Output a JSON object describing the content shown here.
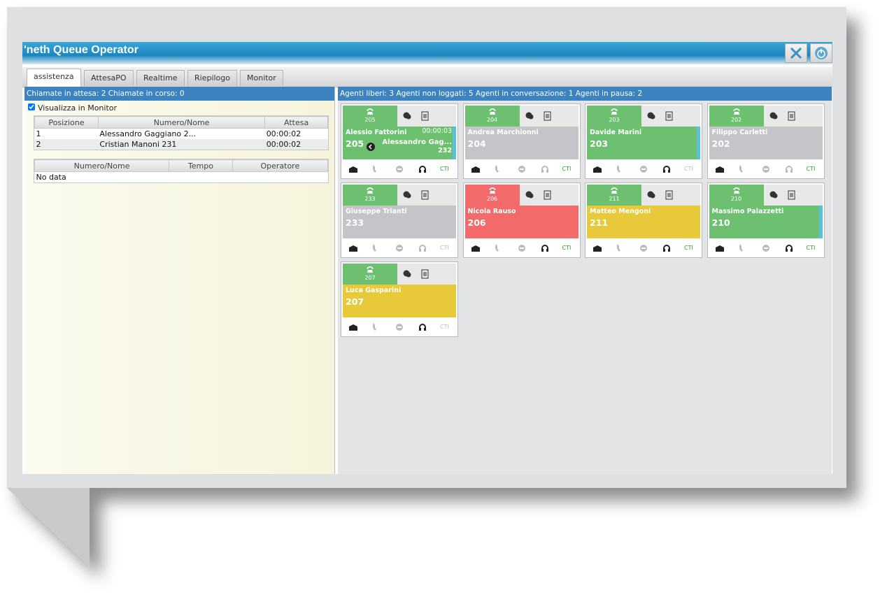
{
  "app": {
    "title": "'neth Queue Operator"
  },
  "tabs": [
    "assistenza",
    "AttesaPO",
    "Realtime",
    "Riepilogo",
    "Monitor"
  ],
  "left": {
    "status": "Chiamate in attesa: 2 Chiamate in corso: 0",
    "checkbox": "Visualizza in Monitor",
    "waiting_table": {
      "headers": [
        "Posizione",
        "Numero/Nome",
        "Attesa"
      ],
      "rows": [
        [
          "1",
          "Alessandro Gaggiano 2...",
          "00:00:02"
        ],
        [
          "2",
          "Cristian Manoni 231",
          "00:00:02"
        ]
      ]
    },
    "calls_table": {
      "headers": [
        "Numero/Nome",
        "Tempo",
        "Operatore"
      ],
      "empty": "No data"
    }
  },
  "right": {
    "status": "Agenti liberi: 3 Agenti non loggati: 5 Agenti in conversazione: 1 Agenti in pausa: 2",
    "cti_label": "CTI",
    "agents": [
      {
        "ext": "205",
        "name": "Alessio Fattorini",
        "number": "205",
        "ext_color": "#6cc070",
        "body_color": "#6cc070",
        "timer": "00:00:03",
        "caller": "Alessandro Gag...",
        "caller_number": "232",
        "side_bar": true,
        "headset_active": true,
        "cti_active": true
      },
      {
        "ext": "204",
        "name": "Andrea Marchionni",
        "number": "204",
        "ext_color": "#6cc070",
        "body_color": "#c4c5c8",
        "side_bar": false,
        "headset_active": false,
        "cti_active": true
      },
      {
        "ext": "203",
        "name": "Davide Marini",
        "number": "203",
        "ext_color": "#6cc070",
        "body_color": "#6cc070",
        "side_bar": true,
        "headset_active": true,
        "cti_active": false
      },
      {
        "ext": "202",
        "name": "Filippo Carletti",
        "number": "202",
        "ext_color": "#6cc070",
        "body_color": "#c4c5c8",
        "side_bar": false,
        "headset_active": false,
        "cti_active": true
      },
      {
        "ext": "233",
        "name": "Giuseppe Trianti",
        "number": "233",
        "ext_color": "#6cc070",
        "body_color": "#c4c5c8",
        "side_bar": false,
        "headset_active": false,
        "cti_active": false
      },
      {
        "ext": "206",
        "name": "Nicola Rauso",
        "number": "206",
        "ext_color": "#f26a6a",
        "body_color": "#f26a6a",
        "side_bar": false,
        "headset_active": true,
        "cti_active": true
      },
      {
        "ext": "211",
        "name": "Matteo Mengoni",
        "number": "211",
        "ext_color": "#6cc070",
        "body_color": "#e8c93a",
        "side_bar": false,
        "headset_active": true,
        "cti_active": true
      },
      {
        "ext": "210",
        "name": "Massimo Palazzetti",
        "number": "210",
        "ext_color": "#6cc070",
        "body_color": "#6cc070",
        "side_bar": true,
        "headset_active": true,
        "cti_active": true
      },
      {
        "ext": "207",
        "name": "Luca Gasparini",
        "number": "207",
        "ext_color": "#6cc070",
        "body_color": "#e8c93a",
        "side_bar": false,
        "headset_active": true,
        "cti_active": false
      }
    ]
  }
}
